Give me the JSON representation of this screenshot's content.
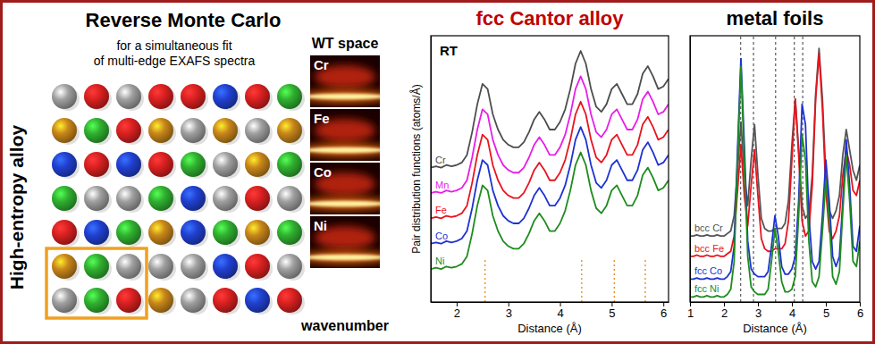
{
  "diagram": {
    "title": "Reverse Monte Carlo",
    "subtitle": [
      "for a simultaneous fit",
      "of multi-edge EXAFS spectra"
    ],
    "side_label": "High-entropy alloy",
    "lattice": {
      "colors": [
        [
          "#a0a0a0",
          "#d92020",
          "#a0a0a0",
          "#d92020",
          "#d92020",
          "#2040d0",
          "#d92020",
          "#30b030"
        ],
        [
          "#c8861a",
          "#30b030",
          "#d92020",
          "#c8861a",
          "#a0a0a0",
          "#c8861a",
          "#a0a0a0",
          "#c8861a"
        ],
        [
          "#2040d0",
          "#d92020",
          "#2040d0",
          "#d92020",
          "#30b030",
          "#a0a0a0",
          "#c8861a",
          "#30b030"
        ],
        [
          "#30b030",
          "#a0a0a0",
          "#a0a0a0",
          "#30b030",
          "#2040d0",
          "#a0a0a0",
          "#d92020",
          "#a0a0a0"
        ],
        [
          "#d92020",
          "#2040d0",
          "#30b030",
          "#c8861a",
          "#2040d0",
          "#30b030",
          "#c8861a",
          "#30b030"
        ],
        [
          "#c8861a",
          "#30b030",
          "#a0a0a0",
          "#a0a0a0",
          "#a0a0a0",
          "#2040d0",
          "#d92020",
          "#a0a0a0"
        ],
        [
          "#a0a0a0",
          "#30b030",
          "#d92020",
          "#c8861a",
          "#a0a0a0",
          "#d92020",
          "#2040d0",
          "#d92020"
        ]
      ]
    },
    "wt": {
      "title": "WT space",
      "panels": [
        "Cr",
        "Fe",
        "Co",
        "Ni"
      ],
      "axis_label": "wavenumber"
    }
  },
  "chart_data": [
    {
      "type": "line",
      "title": "fcc Cantor alloy",
      "annotation": "RT",
      "xlabel": "Distance (Å)",
      "ylabel": "Pair distribution functions (atoms/Å)",
      "xlim": [
        1.5,
        6.1
      ],
      "xticks": [
        2,
        3,
        4,
        5,
        6
      ],
      "ylim": [
        0,
        10.5
      ],
      "tick_labels": "x",
      "reference_lines": [
        2.55,
        4.42,
        5.05,
        5.65
      ],
      "x": [
        1.5,
        1.6,
        1.7,
        1.8,
        1.9,
        2.0,
        2.1,
        2.2,
        2.3,
        2.4,
        2.5,
        2.6,
        2.7,
        2.8,
        2.9,
        3.0,
        3.1,
        3.2,
        3.3,
        3.4,
        3.5,
        3.6,
        3.7,
        3.8,
        3.9,
        4.0,
        4.1,
        4.2,
        4.3,
        4.4,
        4.5,
        4.6,
        4.7,
        4.8,
        4.9,
        5.0,
        5.1,
        5.2,
        5.3,
        5.4,
        5.5,
        5.6,
        5.7,
        5.8,
        5.9,
        6.0,
        6.1
      ],
      "series": [
        {
          "name": "Cr",
          "color": "#4d4d4d",
          "values": [
            5.3,
            5.35,
            5.3,
            5.4,
            5.35,
            5.4,
            5.5,
            5.8,
            6.7,
            7.8,
            8.6,
            8.4,
            7.4,
            6.8,
            6.4,
            6.2,
            6.1,
            6.1,
            6.3,
            6.7,
            7.2,
            7.5,
            7.2,
            6.8,
            6.8,
            7.1,
            7.6,
            8.4,
            9.4,
            9.9,
            9.4,
            8.4,
            7.7,
            7.5,
            7.8,
            8.4,
            8.6,
            8.2,
            7.8,
            7.8,
            8.2,
            9.0,
            9.3,
            8.9,
            8.4,
            8.5,
            8.8
          ]
        },
        {
          "name": "Mn",
          "color": "#e81ee8",
          "values": [
            4.3,
            4.35,
            4.3,
            4.4,
            4.35,
            4.4,
            4.5,
            4.8,
            5.7,
            6.8,
            7.6,
            7.4,
            6.4,
            5.8,
            5.4,
            5.2,
            5.1,
            5.1,
            5.3,
            5.7,
            6.2,
            6.5,
            6.2,
            5.8,
            5.8,
            6.1,
            6.6,
            7.4,
            8.4,
            8.9,
            8.4,
            7.4,
            6.7,
            6.5,
            6.8,
            7.4,
            7.6,
            7.2,
            6.8,
            6.8,
            7.2,
            8.0,
            8.3,
            7.9,
            7.4,
            7.5,
            7.8
          ]
        },
        {
          "name": "Fe",
          "color": "#e8141e",
          "values": [
            3.3,
            3.35,
            3.3,
            3.4,
            3.35,
            3.4,
            3.5,
            3.8,
            4.7,
            5.8,
            6.6,
            6.4,
            5.4,
            4.8,
            4.4,
            4.2,
            4.1,
            4.1,
            4.3,
            4.7,
            5.2,
            5.5,
            5.2,
            4.8,
            4.8,
            5.1,
            5.6,
            6.4,
            7.4,
            7.9,
            7.4,
            6.4,
            5.7,
            5.5,
            5.8,
            6.4,
            6.6,
            6.2,
            5.8,
            5.8,
            6.2,
            7.0,
            7.3,
            6.9,
            6.4,
            6.5,
            6.8
          ]
        },
        {
          "name": "Co",
          "color": "#1e32d2",
          "values": [
            2.3,
            2.35,
            2.3,
            2.4,
            2.35,
            2.4,
            2.5,
            2.8,
            3.7,
            4.8,
            5.6,
            5.4,
            4.4,
            3.8,
            3.4,
            3.2,
            3.1,
            3.1,
            3.3,
            3.7,
            4.2,
            4.5,
            4.2,
            3.8,
            3.8,
            4.1,
            4.6,
            5.4,
            6.4,
            6.9,
            6.4,
            5.4,
            4.7,
            4.5,
            4.8,
            5.4,
            5.6,
            5.2,
            4.8,
            4.8,
            5.2,
            6.0,
            6.3,
            5.9,
            5.4,
            5.5,
            5.8
          ]
        },
        {
          "name": "Ni",
          "color": "#1e8c1e",
          "values": [
            1.3,
            1.35,
            1.3,
            1.4,
            1.35,
            1.4,
            1.5,
            1.8,
            2.7,
            3.8,
            4.6,
            4.4,
            3.4,
            2.8,
            2.4,
            2.2,
            2.1,
            2.1,
            2.3,
            2.7,
            3.2,
            3.5,
            3.2,
            2.8,
            2.8,
            3.1,
            3.6,
            4.4,
            5.4,
            5.9,
            5.4,
            4.4,
            3.7,
            3.5,
            3.8,
            4.4,
            4.6,
            4.2,
            3.8,
            3.8,
            4.2,
            5.0,
            5.3,
            4.9,
            4.4,
            4.5,
            4.8
          ]
        }
      ]
    },
    {
      "type": "line",
      "title": "metal foils",
      "xlabel": "Distance (Å)",
      "xlim": [
        1,
        6
      ],
      "xticks": [
        1,
        2,
        3,
        4,
        5,
        6
      ],
      "ylim": [
        0,
        10.5
      ],
      "tick_labels": "x",
      "reference_lines": [
        2.49,
        2.87,
        3.52,
        4.07,
        4.32
      ],
      "x": [
        1.0,
        1.1,
        1.2,
        1.3,
        1.4,
        1.5,
        1.6,
        1.7,
        1.8,
        1.9,
        2.0,
        2.1,
        2.2,
        2.3,
        2.4,
        2.5,
        2.6,
        2.7,
        2.8,
        2.9,
        3.0,
        3.1,
        3.2,
        3.3,
        3.4,
        3.5,
        3.6,
        3.7,
        3.8,
        3.9,
        4.0,
        4.1,
        4.2,
        4.3,
        4.4,
        4.5,
        4.6,
        4.7,
        4.8,
        4.9,
        5.0,
        5.1,
        5.2,
        5.3,
        5.4,
        5.5,
        5.6,
        5.7,
        5.8,
        5.9,
        6.0
      ],
      "series": [
        {
          "name": "bcc Cr",
          "color": "#555555",
          "values": [
            2.6,
            2.6,
            2.65,
            2.6,
            2.6,
            2.65,
            2.6,
            2.6,
            2.65,
            2.6,
            2.6,
            2.7,
            2.8,
            3.4,
            5.2,
            7.1,
            5.0,
            3.8,
            5.6,
            7.0,
            5.0,
            3.3,
            2.9,
            2.8,
            2.8,
            2.9,
            2.9,
            2.9,
            3.1,
            4.0,
            6.2,
            8.0,
            6.0,
            3.8,
            3.3,
            3.5,
            5.0,
            8.2,
            10.0,
            8.0,
            5.0,
            3.6,
            3.3,
            3.6,
            4.2,
            5.8,
            6.8,
            6.0,
            5.2,
            4.8,
            5.4
          ]
        },
        {
          "name": "bcc Fe",
          "color": "#e8141e",
          "values": [
            1.8,
            1.8,
            1.85,
            1.8,
            1.8,
            1.85,
            1.8,
            1.8,
            1.85,
            1.8,
            1.8,
            1.9,
            2.0,
            2.6,
            4.4,
            6.2,
            4.2,
            3.0,
            4.6,
            6.0,
            4.2,
            2.5,
            2.1,
            2.0,
            2.0,
            2.1,
            2.1,
            2.1,
            2.3,
            3.2,
            5.6,
            8.0,
            5.8,
            3.2,
            2.6,
            2.8,
            4.6,
            8.0,
            9.8,
            7.6,
            4.4,
            2.8,
            2.5,
            2.8,
            3.4,
            5.0,
            6.0,
            5.4,
            4.4,
            4.2,
            4.8
          ]
        },
        {
          "name": "fcc Co",
          "color": "#1e32d2",
          "values": [
            0.9,
            0.9,
            0.95,
            0.9,
            0.9,
            0.95,
            0.9,
            0.9,
            0.95,
            0.9,
            0.9,
            1.0,
            1.2,
            2.2,
            6.0,
            9.6,
            6.2,
            2.4,
            1.3,
            1.1,
            1.0,
            1.0,
            1.0,
            1.2,
            2.2,
            3.4,
            2.6,
            1.4,
            1.1,
            1.1,
            1.3,
            1.8,
            4.0,
            7.8,
            7.0,
            3.4,
            1.6,
            1.3,
            1.6,
            3.4,
            5.6,
            4.0,
            1.8,
            1.4,
            1.8,
            4.0,
            6.4,
            4.6,
            2.2,
            2.0,
            3.0
          ]
        },
        {
          "name": "fcc Ni",
          "color": "#1e8c1e",
          "values": [
            0.2,
            0.2,
            0.25,
            0.2,
            0.2,
            0.25,
            0.2,
            0.2,
            0.25,
            0.2,
            0.2,
            0.3,
            0.5,
            1.6,
            5.6,
            9.3,
            5.6,
            1.8,
            0.6,
            0.4,
            0.3,
            0.3,
            0.3,
            0.5,
            1.6,
            2.9,
            2.0,
            0.8,
            0.4,
            0.4,
            0.5,
            1.0,
            3.4,
            6.6,
            5.6,
            2.4,
            0.8,
            0.6,
            1.0,
            2.8,
            4.8,
            3.2,
            1.0,
            0.7,
            1.2,
            3.6,
            5.8,
            4.0,
            1.6,
            1.4,
            2.4
          ]
        }
      ]
    }
  ]
}
